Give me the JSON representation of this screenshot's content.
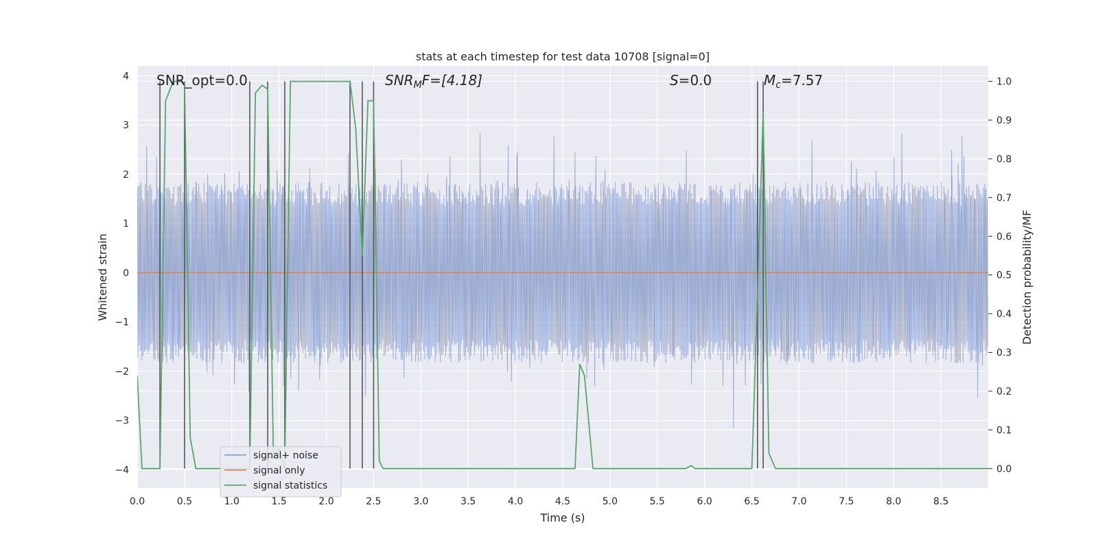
{
  "chart_data": {
    "type": "line",
    "title": "stats at each timestep for test data 10708 [signal=0]",
    "xlabel": "Time (s)",
    "ylabel_left": "Whitened strain",
    "ylabel_right": "Detection probability/MF",
    "xlim": [
      0.0,
      9.0
    ],
    "ylim_left": [
      -4.37,
      4.2
    ],
    "ylim_right": [
      -0.05,
      1.04
    ],
    "grid": true,
    "xticks": [
      "0.0",
      "0.5",
      "1.0",
      "1.5",
      "2.0",
      "2.5",
      "3.0",
      "3.5",
      "4.0",
      "4.5",
      "5.0",
      "5.5",
      "6.0",
      "6.5",
      "7.0",
      "7.5",
      "8.0",
      "8.5"
    ],
    "yticks_left": [
      "−4",
      "−3",
      "−2",
      "−1",
      "0",
      "1",
      "2",
      "3",
      "4"
    ],
    "yticks_right": [
      "0.0",
      "0.1",
      "0.2",
      "0.3",
      "0.4",
      "0.5",
      "0.6",
      "0.7",
      "0.8",
      "0.9",
      "1.0"
    ],
    "annotations": {
      "snr_opt": "SNR_opt=0.0",
      "snr_mf_sym": "SNR",
      "snr_mf_sub": "M",
      "snr_mf_rest": "F=[4.18]",
      "s_sym": "S",
      "s_rest": "=0.0",
      "mc_sym": "M",
      "mc_sub": "c",
      "mc_rest": "=7.57"
    },
    "legend": {
      "position": "lower-left",
      "entries": [
        "signal+ noise",
        "signal only",
        "signal statistics"
      ]
    },
    "colors": {
      "noise": "#8da0cb",
      "signal_only": "#dd8452",
      "statistics": "#55a868",
      "vlines": "#555555",
      "axes_bg": "#eaeaf2",
      "grid": "#ffffff"
    },
    "noise_envelope": {
      "description_free": true,
      "dense_range": [
        -1.6,
        1.6
      ],
      "seed": 10708
    },
    "signal_only": {
      "x": [
        0.0,
        9.0
      ],
      "y": [
        0.0,
        0.0
      ]
    },
    "vertical_lines": [
      0.24,
      0.5,
      1.19,
      1.38,
      1.56,
      2.25,
      2.38,
      2.5,
      6.56,
      6.62
    ],
    "series": [
      {
        "name": "signal statistics",
        "axis": "right",
        "x": [
          0.0,
          0.05,
          0.1,
          0.15,
          0.2,
          0.24,
          0.3,
          0.38,
          0.45,
          0.5,
          0.56,
          0.62,
          0.7,
          1.0,
          1.19,
          1.25,
          1.32,
          1.38,
          1.44,
          1.5,
          1.56,
          1.62,
          2.0,
          2.25,
          2.31,
          2.38,
          2.44,
          2.5,
          2.56,
          2.6,
          2.8,
          3.0,
          4.0,
          4.63,
          4.68,
          4.73,
          4.82,
          5.0,
          5.5,
          5.8,
          5.86,
          5.9,
          6.0,
          6.3,
          6.5,
          6.56,
          6.62,
          6.68,
          6.75,
          6.8,
          7.5,
          9.0
        ],
        "y": [
          0.24,
          0.0,
          0.0,
          0.0,
          0.0,
          0.0,
          0.95,
          1.0,
          1.0,
          0.995,
          0.08,
          0.0,
          0.0,
          0.0,
          0.0,
          0.97,
          0.99,
          0.98,
          0.03,
          0.05,
          0.0,
          1.0,
          1.0,
          1.0,
          0.88,
          0.55,
          0.95,
          0.95,
          0.02,
          0.0,
          0.0,
          0.0,
          0.0,
          0.0,
          0.27,
          0.24,
          0.0,
          0.0,
          0.0,
          0.0,
          0.008,
          0.0,
          0.0,
          0.0,
          0.0,
          0.45,
          0.92,
          0.04,
          0.0,
          0.0,
          0.0,
          0.0
        ]
      }
    ]
  }
}
